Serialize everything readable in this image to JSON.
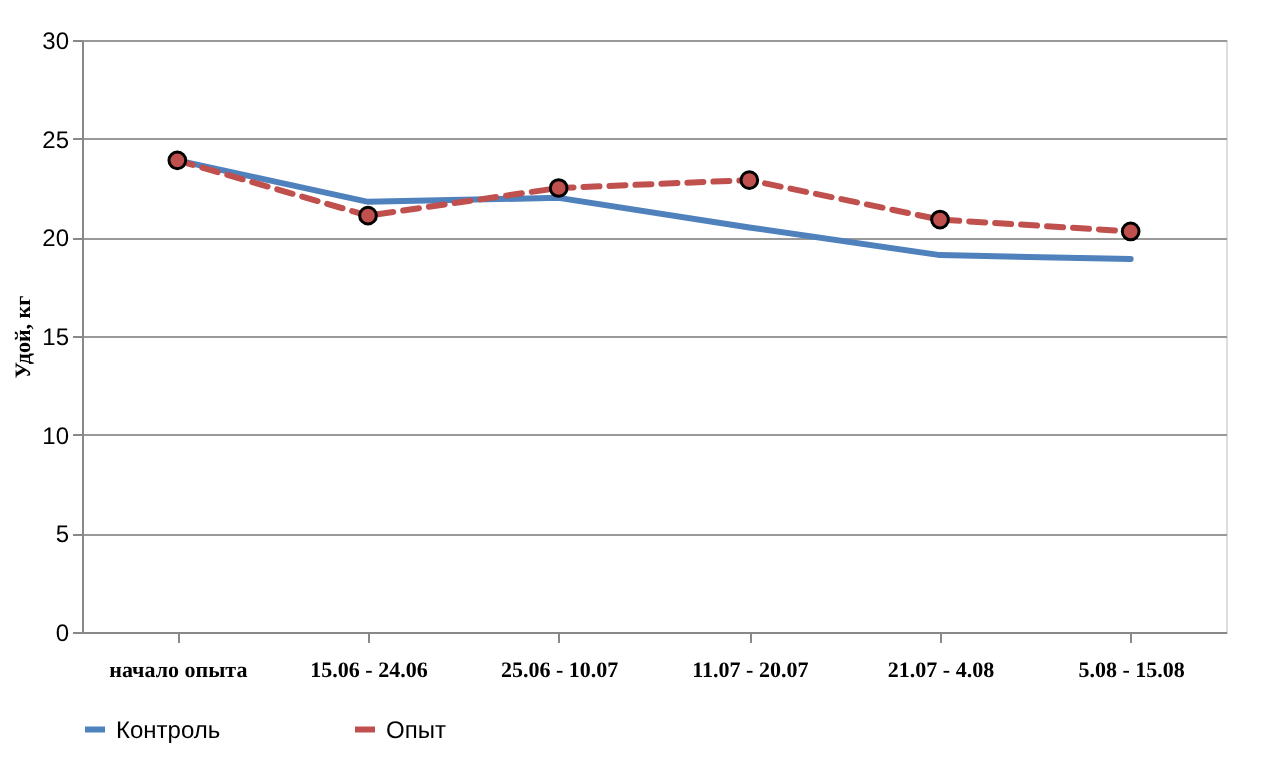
{
  "chart_data": {
    "type": "line",
    "ylabel": "Удой, кг",
    "categories": [
      "начало опыта",
      "15.06 - 24.06",
      "25.06 - 10.07",
      "11.07 - 20.07",
      "21.07 - 4.08",
      "5.08 - 15.08"
    ],
    "series": [
      {
        "name": "Контроль",
        "color": "#4f81bd",
        "values": [
          23.9,
          21.8,
          22.0,
          20.5,
          19.1,
          18.9
        ],
        "marker": "none",
        "line_style": "solid"
      },
      {
        "name": "Опыт",
        "color": "#c0504d",
        "values": [
          23.9,
          21.1,
          22.5,
          22.9,
          20.9,
          20.3
        ],
        "marker": "circle",
        "line_style": "dashed"
      }
    ],
    "ylim": [
      0,
      30
    ],
    "yticks": [
      0,
      5,
      10,
      15,
      20,
      25,
      30
    ],
    "grid": "y",
    "legend": "bottom"
  }
}
